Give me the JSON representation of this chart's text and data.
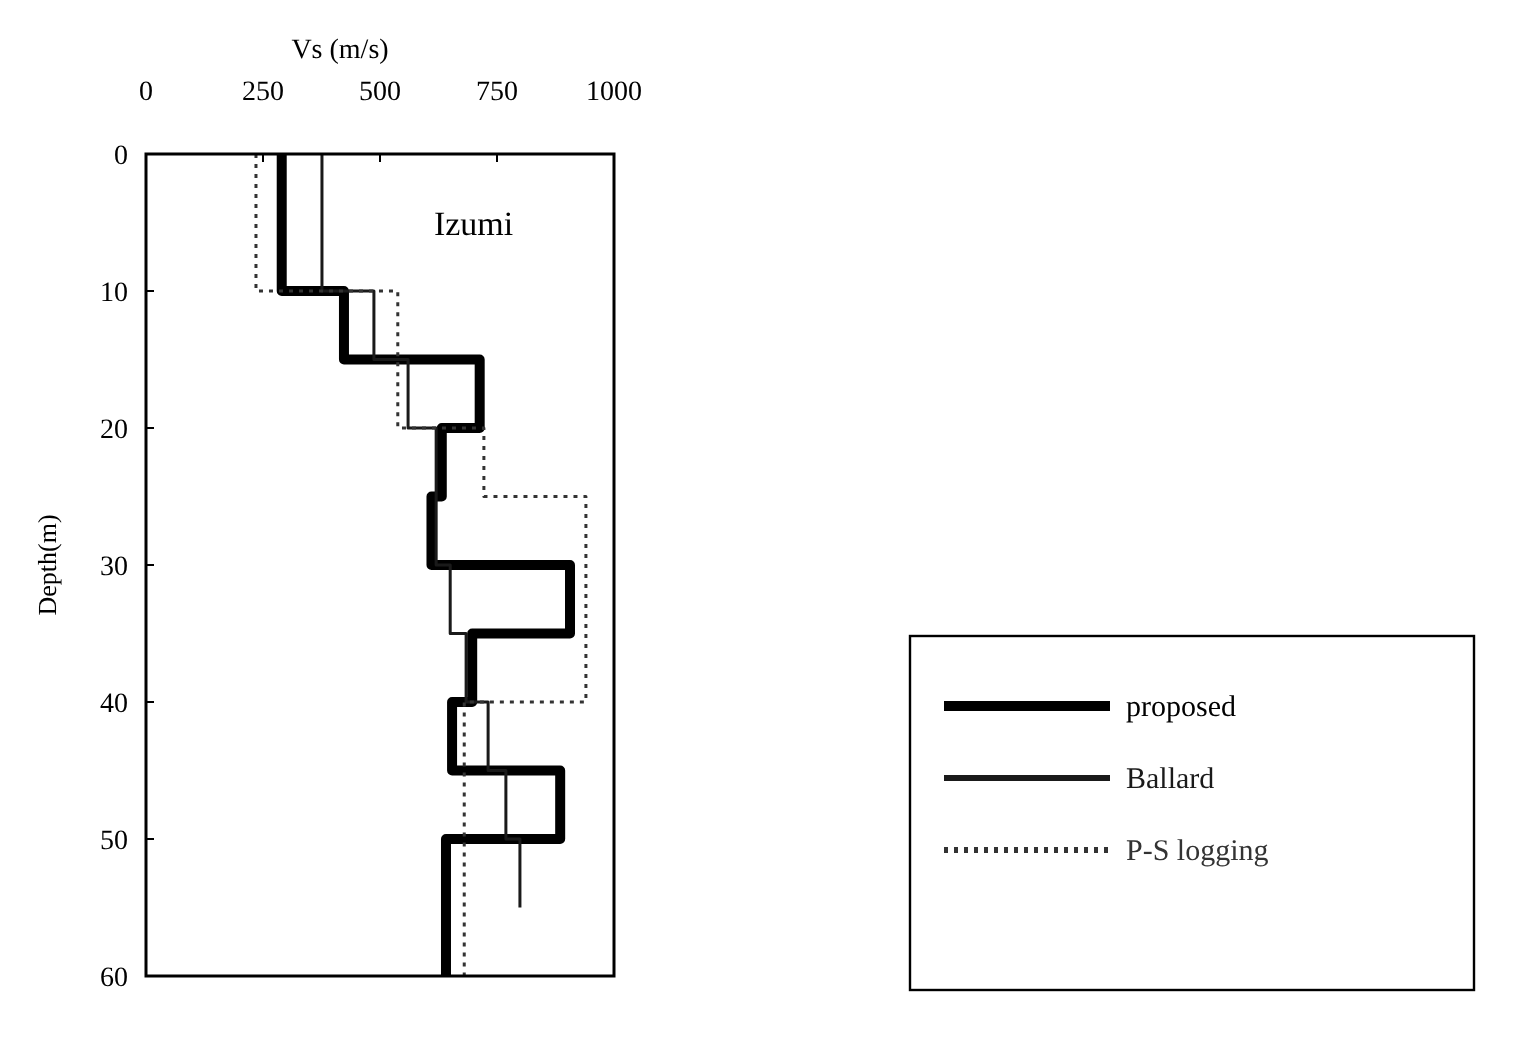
{
  "chart_data": {
    "type": "line",
    "xlabel": "Vs (m/s)",
    "ylabel": "Depth(m)",
    "xlim": [
      0,
      1000
    ],
    "xticks": [
      0,
      250,
      500,
      750,
      1000
    ],
    "ylim": [
      60,
      0
    ],
    "yticks": [
      0,
      10,
      20,
      30,
      40,
      50,
      60
    ],
    "grid": false,
    "legend": "bottom right",
    "marker": "none",
    "annotations": [
      "Izumi"
    ],
    "series": [
      {
        "name": "proposed",
        "color": "#000000",
        "line_style": "solid",
        "x": [
          290,
          290,
          423,
          423,
          713,
          713,
          632,
          632,
          610,
          610,
          906,
          906,
          697,
          697,
          654,
          654,
          885,
          885,
          641,
          641
        ],
        "values": [
          0,
          10,
          10,
          15,
          15,
          20,
          20,
          25,
          25,
          30,
          30,
          35,
          35,
          40,
          40,
          45,
          45,
          50,
          50,
          60
        ]
      },
      {
        "name": "Ballard",
        "color": "#1a1a1a",
        "line_style": "solid",
        "x": [
          376,
          376,
          487,
          487,
          560,
          560,
          620,
          620,
          650,
          650,
          684,
          684,
          731,
          731,
          769,
          769,
          799,
          799
        ],
        "values": [
          0,
          10,
          10,
          15,
          15,
          20,
          20,
          30,
          30,
          35,
          35,
          40,
          40,
          45,
          45,
          50,
          50,
          55
        ]
      },
      {
        "name": "P-S logging",
        "color": "#333333",
        "line_style": "dotted",
        "x": [
          235,
          235,
          538,
          538,
          722,
          722,
          940,
          940,
          680,
          680
        ],
        "values": [
          0,
          10,
          10,
          20,
          20,
          25,
          25,
          40,
          40,
          60
        ]
      }
    ]
  }
}
